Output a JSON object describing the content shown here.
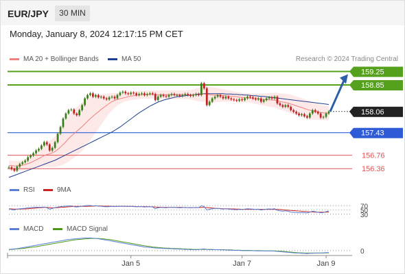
{
  "header": {
    "pair": "EUR/JPY",
    "timeframe": "30 MIN",
    "datetime": "Monday, January 8, 2024 12:17:15 PM CET",
    "credit": "Research © 2024 Trading Central"
  },
  "colors": {
    "candle_up": "#3a7d1c",
    "candle_down": "#c21f1f",
    "ma20": "#f08080",
    "bollinger_fill": "#fde2e2",
    "ma50": "#1e3f8f",
    "resistance": "#55a01d",
    "current": "#222222",
    "support_blue": "#2f5bd7",
    "support_red": "#e05454",
    "arrow": "#2d5fa6",
    "rsi": "#5a7fd6",
    "rsi_ma": "#cc2222",
    "macd": "#5a7fd6",
    "macd_signal": "#4a9a1a"
  },
  "legend": {
    "ma20": "MA 20 + Bollinger Bands",
    "ma50": "MA 50",
    "rsi": "RSI",
    "rsi_ma": "9MA",
    "macd": "MACD",
    "macd_signal": "MACD Signal"
  },
  "chart_data": [
    {
      "type": "candlestick",
      "title": "",
      "ylim": [
        156.1,
        159.4
      ],
      "x_range": [
        0,
        119
      ],
      "x_ticks": [
        {
          "label": "Jan 5",
          "index": 45
        },
        {
          "label": "Jan 7",
          "index": 86
        },
        {
          "label": "Jan 9",
          "index": 117
        }
      ],
      "price_levels": [
        {
          "value": 159.25,
          "label": "159.25",
          "kind": "resistance"
        },
        {
          "value": 158.85,
          "label": "158.85",
          "kind": "resistance"
        },
        {
          "value": 158.06,
          "label": "158.06",
          "kind": "current"
        },
        {
          "value": 157.43,
          "label": "157.43",
          "kind": "support"
        },
        {
          "value": 156.76,
          "label": "156.76",
          "kind": "support_minor"
        },
        {
          "value": 156.36,
          "label": "156.36",
          "kind": "support_minor"
        }
      ],
      "forecast_arrow": {
        "from": 158.06,
        "to": 159.25
      },
      "close": [
        156.4,
        156.35,
        156.3,
        156.42,
        156.5,
        156.55,
        156.6,
        156.7,
        156.75,
        156.82,
        156.9,
        156.95,
        157.05,
        157.15,
        157.08,
        156.9,
        156.98,
        157.15,
        157.4,
        157.6,
        157.85,
        158.0,
        158.1,
        158.12,
        158.0,
        157.95,
        158.1,
        158.25,
        158.45,
        158.55,
        158.6,
        158.5,
        158.55,
        158.48,
        158.5,
        158.45,
        158.42,
        158.48,
        158.5,
        158.45,
        158.55,
        158.62,
        158.65,
        158.6,
        158.58,
        158.62,
        158.6,
        158.55,
        158.58,
        158.6,
        158.55,
        158.58,
        158.6,
        158.58,
        158.4,
        158.5,
        158.55,
        158.52,
        158.5,
        158.55,
        158.58,
        158.55,
        158.55,
        158.52,
        158.55,
        158.58,
        158.55,
        158.52,
        158.55,
        158.58,
        158.55,
        158.9,
        158.75,
        158.25,
        158.35,
        158.45,
        158.5,
        158.55,
        158.5,
        158.45,
        158.5,
        158.45,
        158.42,
        158.4,
        158.38,
        158.42,
        158.4,
        158.45,
        158.5,
        158.48,
        158.45,
        158.42,
        158.45,
        158.35,
        158.4,
        158.45,
        158.48,
        158.45,
        158.5,
        158.3,
        158.25,
        158.2,
        158.25,
        158.2,
        158.1,
        158.05,
        158.0,
        157.95,
        157.98,
        157.92,
        157.88,
        158.0,
        158.1,
        158.05,
        158.0,
        157.88,
        157.9,
        158.0,
        158.06
      ],
      "ma20": [
        156.45,
        156.45,
        156.44,
        156.44,
        156.45,
        156.46,
        156.48,
        156.51,
        156.54,
        156.58,
        156.62,
        156.66,
        156.7,
        156.75,
        156.78,
        156.8,
        156.83,
        156.87,
        156.93,
        157.0,
        157.08,
        157.16,
        157.25,
        157.33,
        157.4,
        157.47,
        157.54,
        157.61,
        157.69,
        157.77,
        157.85,
        157.92,
        157.99,
        158.05,
        158.12,
        158.18,
        158.24,
        158.3,
        158.35,
        158.39,
        158.42,
        158.44,
        158.46,
        158.48,
        158.5,
        158.52,
        158.53,
        158.54,
        158.55,
        158.56,
        158.56,
        158.56,
        158.57,
        158.57,
        158.56,
        158.56,
        158.56,
        158.56,
        158.56,
        158.56,
        158.56,
        158.56,
        158.56,
        158.56,
        158.56,
        158.56,
        158.56,
        158.56,
        158.56,
        158.56,
        158.56,
        158.57,
        158.58,
        158.57,
        158.56,
        158.55,
        158.55,
        158.55,
        158.54,
        158.54,
        158.53,
        158.52,
        158.52,
        158.51,
        158.5,
        158.49,
        158.48,
        158.47,
        158.47,
        158.46,
        158.45,
        158.44,
        158.43,
        158.42,
        158.42,
        158.41,
        158.41,
        158.4,
        158.4,
        158.38,
        158.36,
        158.34,
        158.33,
        158.31,
        158.28,
        158.26,
        158.23,
        158.2,
        158.18,
        158.15,
        158.12,
        158.1,
        158.08,
        158.06,
        158.05,
        158.03,
        158.02,
        158.01,
        158.01
      ],
      "ma50": [
        156.1,
        156.13,
        156.16,
        156.19,
        156.22,
        156.25,
        156.28,
        156.31,
        156.34,
        156.37,
        156.4,
        156.43,
        156.46,
        156.49,
        156.52,
        156.55,
        156.58,
        156.61,
        156.65,
        156.69,
        156.73,
        156.77,
        156.81,
        156.85,
        156.89,
        156.93,
        156.97,
        157.01,
        157.05,
        157.09,
        157.13,
        157.17,
        157.21,
        157.25,
        157.29,
        157.33,
        157.37,
        157.41,
        157.45,
        157.5,
        157.55,
        157.6,
        157.66,
        157.72,
        157.78,
        157.84,
        157.9,
        157.96,
        158.02,
        158.07,
        158.12,
        158.17,
        158.22,
        158.26,
        158.3,
        158.34,
        158.37,
        158.4,
        158.42,
        158.44,
        158.46,
        158.48,
        158.5,
        158.51,
        158.52,
        158.53,
        158.54,
        158.55,
        158.56,
        158.57,
        158.58,
        158.58,
        158.59,
        158.59,
        158.59,
        158.59,
        158.59,
        158.59,
        158.59,
        158.59,
        158.58,
        158.58,
        158.58,
        158.57,
        158.57,
        158.56,
        158.56,
        158.55,
        158.55,
        158.54,
        158.53,
        158.53,
        158.52,
        158.51,
        158.51,
        158.5,
        158.49,
        158.48,
        158.47,
        158.46,
        158.45,
        158.44,
        158.43,
        158.42,
        158.41,
        158.4,
        158.39,
        158.38,
        158.37,
        158.36,
        158.35,
        158.34,
        158.33,
        158.32,
        158.31,
        158.3,
        158.29,
        158.28,
        158.27
      ],
      "bb_width": [
        0.15,
        0.15,
        0.15,
        0.15,
        0.15,
        0.16,
        0.17,
        0.18,
        0.2,
        0.22,
        0.24,
        0.27,
        0.3,
        0.33,
        0.36,
        0.39,
        0.42,
        0.46,
        0.5,
        0.55,
        0.6,
        0.64,
        0.68,
        0.7,
        0.72,
        0.72,
        0.72,
        0.72,
        0.7,
        0.68,
        0.65,
        0.6,
        0.55,
        0.5,
        0.45,
        0.4,
        0.35,
        0.3,
        0.26,
        0.22,
        0.18,
        0.15,
        0.13,
        0.12,
        0.12,
        0.12,
        0.12,
        0.12,
        0.12,
        0.12,
        0.12,
        0.12,
        0.12,
        0.12,
        0.13,
        0.13,
        0.13,
        0.13,
        0.13,
        0.13,
        0.13,
        0.13,
        0.13,
        0.13,
        0.13,
        0.13,
        0.13,
        0.14,
        0.16,
        0.18,
        0.2,
        0.22,
        0.23,
        0.24,
        0.24,
        0.23,
        0.22,
        0.21,
        0.2,
        0.19,
        0.18,
        0.17,
        0.16,
        0.15,
        0.14,
        0.14,
        0.14,
        0.14,
        0.14,
        0.14,
        0.14,
        0.15,
        0.16,
        0.17,
        0.18,
        0.19,
        0.2,
        0.21,
        0.22,
        0.23,
        0.24,
        0.25,
        0.26,
        0.27,
        0.28,
        0.28,
        0.28,
        0.28,
        0.28,
        0.28,
        0.28,
        0.27,
        0.26,
        0.25,
        0.24,
        0.23,
        0.22,
        0.21,
        0.2
      ]
    },
    {
      "type": "line",
      "title": "",
      "levels": [
        70,
        50,
        30
      ],
      "ylim": [
        10,
        100
      ],
      "rsi": [
        55,
        52,
        50,
        54,
        56,
        57,
        58,
        60,
        61,
        62,
        63,
        62,
        63,
        64,
        60,
        54,
        57,
        61,
        64,
        66,
        67,
        68,
        69,
        69,
        66,
        64,
        66,
        68,
        70,
        71,
        71,
        69,
        70,
        68,
        68,
        66,
        65,
        66,
        67,
        66,
        67,
        68,
        68,
        67,
        66,
        67,
        66,
        65,
        66,
        66,
        64,
        65,
        66,
        64,
        56,
        60,
        62,
        61,
        60,
        62,
        63,
        62,
        61,
        60,
        61,
        62,
        61,
        60,
        61,
        62,
        61,
        70,
        66,
        50,
        53,
        56,
        57,
        58,
        56,
        54,
        56,
        54,
        53,
        52,
        51,
        53,
        52,
        54,
        56,
        55,
        54,
        53,
        54,
        50,
        52,
        54,
        55,
        54,
        56,
        48,
        46,
        44,
        46,
        44,
        40,
        39,
        38,
        37,
        38,
        37,
        36,
        40,
        44,
        42,
        40,
        37,
        38,
        42,
        46
      ],
      "rsi_ma": [
        56,
        55,
        54,
        54,
        54,
        55,
        55,
        56,
        57,
        58,
        59,
        60,
        61,
        62,
        62,
        61,
        60,
        60,
        61,
        62,
        63,
        64,
        65,
        66,
        67,
        67,
        67,
        67,
        67,
        67,
        68,
        68,
        69,
        69,
        69,
        68,
        68,
        68,
        67,
        67,
        67,
        67,
        67,
        67,
        67,
        67,
        67,
        66,
        66,
        66,
        66,
        66,
        65,
        65,
        64,
        63,
        63,
        62,
        62,
        62,
        62,
        62,
        62,
        62,
        62,
        61,
        61,
        61,
        61,
        61,
        61,
        62,
        62,
        61,
        60,
        59,
        58,
        57,
        57,
        56,
        56,
        56,
        55,
        55,
        54,
        54,
        53,
        53,
        53,
        53,
        53,
        53,
        53,
        53,
        53,
        53,
        53,
        53,
        53,
        53,
        52,
        51,
        50,
        49,
        48,
        47,
        46,
        45,
        44,
        43,
        42,
        41,
        41,
        40,
        40,
        40,
        40,
        40,
        41
      ]
    },
    {
      "type": "line",
      "title": "",
      "zero_label": "0",
      "macd": [
        0.05,
        0.06,
        0.07,
        0.08,
        0.1,
        0.12,
        0.14,
        0.16,
        0.18,
        0.2,
        0.22,
        0.24,
        0.26,
        0.28,
        0.3,
        0.32,
        0.34,
        0.36,
        0.38,
        0.4,
        0.42,
        0.44,
        0.46,
        0.47,
        0.48,
        0.49,
        0.5,
        0.51,
        0.52,
        0.52,
        0.52,
        0.51,
        0.5,
        0.49,
        0.47,
        0.45,
        0.43,
        0.41,
        0.39,
        0.37,
        0.35,
        0.33,
        0.31,
        0.29,
        0.27,
        0.25,
        0.23,
        0.21,
        0.19,
        0.17,
        0.15,
        0.14,
        0.13,
        0.12,
        0.11,
        0.1,
        0.1,
        0.09,
        0.09,
        0.08,
        0.08,
        0.07,
        0.07,
        0.06,
        0.06,
        0.05,
        0.05,
        0.04,
        0.04,
        0.04,
        0.04,
        0.06,
        0.07,
        0.05,
        0.04,
        0.04,
        0.04,
        0.04,
        0.03,
        0.03,
        0.03,
        0.02,
        0.02,
        0.01,
        0.01,
        0.01,
        0.0,
        0.0,
        0.0,
        0.0,
        0.0,
        -0.01,
        -0.01,
        -0.01,
        -0.01,
        -0.01,
        -0.01,
        -0.01,
        -0.02,
        -0.03,
        -0.04,
        -0.05,
        -0.06,
        -0.07,
        -0.08,
        -0.09,
        -0.1,
        -0.1,
        -0.11,
        -0.11,
        -0.12,
        -0.11,
        -0.11,
        -0.1,
        -0.1,
        -0.1,
        -0.09,
        -0.08,
        -0.08
      ],
      "signal": [
        0.04,
        0.05,
        0.06,
        0.07,
        0.08,
        0.09,
        0.1,
        0.12,
        0.13,
        0.15,
        0.16,
        0.18,
        0.2,
        0.22,
        0.24,
        0.26,
        0.28,
        0.3,
        0.32,
        0.34,
        0.36,
        0.38,
        0.4,
        0.42,
        0.44,
        0.45,
        0.46,
        0.47,
        0.48,
        0.49,
        0.5,
        0.5,
        0.5,
        0.5,
        0.49,
        0.48,
        0.47,
        0.46,
        0.44,
        0.42,
        0.4,
        0.38,
        0.36,
        0.34,
        0.32,
        0.3,
        0.28,
        0.26,
        0.24,
        0.22,
        0.2,
        0.18,
        0.17,
        0.15,
        0.14,
        0.13,
        0.12,
        0.11,
        0.1,
        0.1,
        0.09,
        0.09,
        0.08,
        0.08,
        0.07,
        0.07,
        0.06,
        0.06,
        0.05,
        0.05,
        0.05,
        0.05,
        0.05,
        0.05,
        0.05,
        0.05,
        0.04,
        0.04,
        0.04,
        0.04,
        0.03,
        0.03,
        0.03,
        0.02,
        0.02,
        0.02,
        0.01,
        0.01,
        0.01,
        0.01,
        0.0,
        0.0,
        0.0,
        0.0,
        -0.01,
        -0.01,
        -0.01,
        -0.01,
        -0.01,
        -0.02,
        -0.02,
        -0.03,
        -0.04,
        -0.05,
        -0.06,
        -0.07,
        -0.08,
        -0.09,
        -0.09,
        -0.1,
        -0.1,
        -0.1,
        -0.1,
        -0.1,
        -0.1,
        -0.1,
        -0.1,
        -0.09,
        -0.09
      ],
      "ylim": [
        -0.2,
        0.7
      ]
    }
  ]
}
